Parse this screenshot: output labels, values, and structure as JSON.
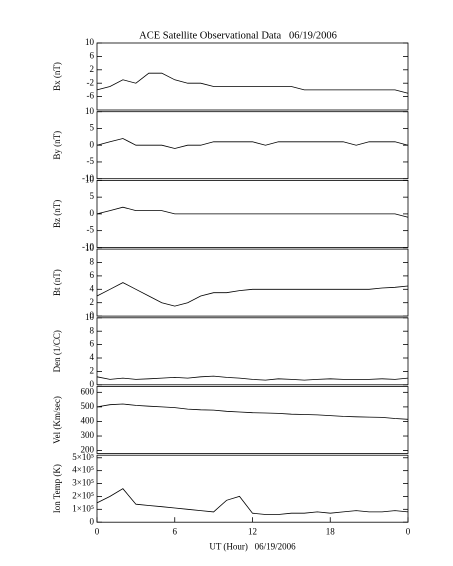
{
  "chart_data": [
    {
      "type": "line",
      "title": "ACE Satellite Observational Data   06/19/2006",
      "ylabel": "Bx (nT)",
      "color": "#000000",
      "x": [
        0,
        1,
        2,
        3,
        4,
        5,
        6,
        7,
        8,
        9,
        10,
        11,
        12,
        13,
        14,
        15,
        16,
        17,
        18,
        19,
        20,
        21,
        22,
        23,
        24
      ],
      "values": [
        -4,
        -3,
        -1,
        -2,
        1,
        1,
        -1,
        -2,
        -2,
        -3,
        -3,
        -3,
        -3,
        -3,
        -3,
        -3,
        -4,
        -4,
        -4,
        -4,
        -4,
        -4,
        -4,
        -4,
        -5
      ],
      "xlim": [
        0,
        24
      ],
      "ylim": [
        -10,
        10
      ],
      "yticks": [
        -6,
        -2,
        2,
        6,
        10
      ]
    },
    {
      "type": "line",
      "ylabel": "By (nT)",
      "color": "#000000",
      "x": [
        0,
        1,
        2,
        3,
        4,
        5,
        6,
        7,
        8,
        9,
        10,
        11,
        12,
        13,
        14,
        15,
        16,
        17,
        18,
        19,
        20,
        21,
        22,
        23,
        24
      ],
      "values": [
        0,
        1,
        2,
        0,
        0,
        0,
        -1,
        0,
        0,
        1,
        1,
        1,
        1,
        0,
        1,
        1,
        1,
        1,
        1,
        1,
        0,
        1,
        1,
        1,
        0
      ],
      "xlim": [
        0,
        24
      ],
      "ylim": [
        -10,
        10
      ],
      "yticks": [
        -10,
        -5,
        0,
        5,
        10
      ]
    },
    {
      "type": "line",
      "ylabel": "Bz (nT)",
      "color": "#000000",
      "x": [
        0,
        1,
        2,
        3,
        4,
        5,
        6,
        7,
        8,
        9,
        10,
        11,
        12,
        13,
        14,
        15,
        16,
        17,
        18,
        19,
        20,
        21,
        22,
        23,
        24
      ],
      "values": [
        0,
        1,
        2,
        1,
        1,
        1,
        0,
        0,
        0,
        0,
        0,
        0,
        0,
        0,
        0,
        0,
        0,
        0,
        0,
        0,
        0,
        0,
        0,
        0,
        -1
      ],
      "xlim": [
        0,
        24
      ],
      "ylim": [
        -10,
        10
      ],
      "yticks": [
        -10,
        -5,
        0,
        5,
        10
      ]
    },
    {
      "type": "line",
      "ylabel": "Bt (nT)",
      "color": "#000000",
      "x": [
        0,
        1,
        2,
        3,
        4,
        5,
        6,
        7,
        8,
        9,
        10,
        11,
        12,
        13,
        14,
        15,
        16,
        17,
        18,
        19,
        20,
        21,
        22,
        23,
        24
      ],
      "values": [
        3,
        4,
        5,
        4,
        3,
        2,
        1.5,
        2,
        3,
        3.5,
        3.5,
        3.8,
        4,
        4,
        4,
        4,
        4,
        4,
        4,
        4,
        4,
        4,
        4.2,
        4.3,
        4.5
      ],
      "xlim": [
        0,
        24
      ],
      "ylim": [
        0,
        10
      ],
      "yticks": [
        0,
        2,
        4,
        6,
        8,
        10
      ]
    },
    {
      "type": "line",
      "ylabel": "Den (1/CC)",
      "color": "#000000",
      "x": [
        0,
        1,
        2,
        3,
        4,
        5,
        6,
        7,
        8,
        9,
        10,
        11,
        12,
        13,
        14,
        15,
        16,
        17,
        18,
        19,
        20,
        21,
        22,
        23,
        24
      ],
      "values": [
        1.2,
        0.8,
        1.0,
        0.8,
        0.9,
        1.0,
        1.1,
        1.0,
        1.2,
        1.3,
        1.1,
        1.0,
        0.8,
        0.7,
        0.9,
        0.8,
        0.7,
        0.8,
        0.9,
        0.8,
        0.8,
        0.8,
        0.9,
        0.8,
        1.0
      ],
      "xlim": [
        0,
        24
      ],
      "ylim": [
        0,
        10
      ],
      "yticks": [
        0,
        2,
        4,
        6,
        8,
        10
      ]
    },
    {
      "type": "line",
      "ylabel": "Vel (Km/sec)",
      "color": "#000000",
      "x": [
        0,
        1,
        2,
        3,
        4,
        5,
        6,
        7,
        8,
        9,
        10,
        11,
        12,
        13,
        14,
        15,
        16,
        17,
        18,
        19,
        20,
        21,
        22,
        23,
        24
      ],
      "values": [
        500,
        515,
        520,
        510,
        505,
        500,
        495,
        485,
        480,
        478,
        470,
        465,
        460,
        458,
        455,
        450,
        448,
        445,
        440,
        435,
        432,
        430,
        428,
        420,
        415
      ],
      "xlim": [
        0,
        24
      ],
      "ylim": [
        180,
        640
      ],
      "yticks": [
        200,
        300,
        400,
        500,
        600
      ]
    },
    {
      "type": "line",
      "ylabel": "Ion Temp (K)",
      "xlabel": "UT (Hour)   06/19/2006",
      "color": "#000000",
      "x": [
        0,
        1,
        2,
        3,
        4,
        5,
        6,
        7,
        8,
        9,
        10,
        11,
        12,
        13,
        14,
        15,
        16,
        17,
        18,
        19,
        20,
        21,
        22,
        23,
        24
      ],
      "values": [
        150000,
        200000,
        260000,
        140000,
        130000,
        120000,
        110000,
        100000,
        90000,
        80000,
        170000,
        200000,
        70000,
        60000,
        60000,
        70000,
        70000,
        80000,
        70000,
        80000,
        90000,
        80000,
        80000,
        90000,
        80000
      ],
      "xlim": [
        0,
        24
      ],
      "ylim": [
        0,
        520000
      ],
      "yticks": [
        0,
        {
          "value": 100000,
          "label": "1×10⁵"
        },
        {
          "value": 200000,
          "label": "2×10⁵"
        },
        {
          "value": 300000,
          "label": "3×10⁵"
        },
        {
          "value": 400000,
          "label": "4×10⁵"
        },
        {
          "value": 500000,
          "label": "5×10⁵"
        }
      ],
      "xticks": [
        0,
        6,
        12,
        18,
        {
          "value": 24,
          "label": "0"
        }
      ]
    }
  ]
}
